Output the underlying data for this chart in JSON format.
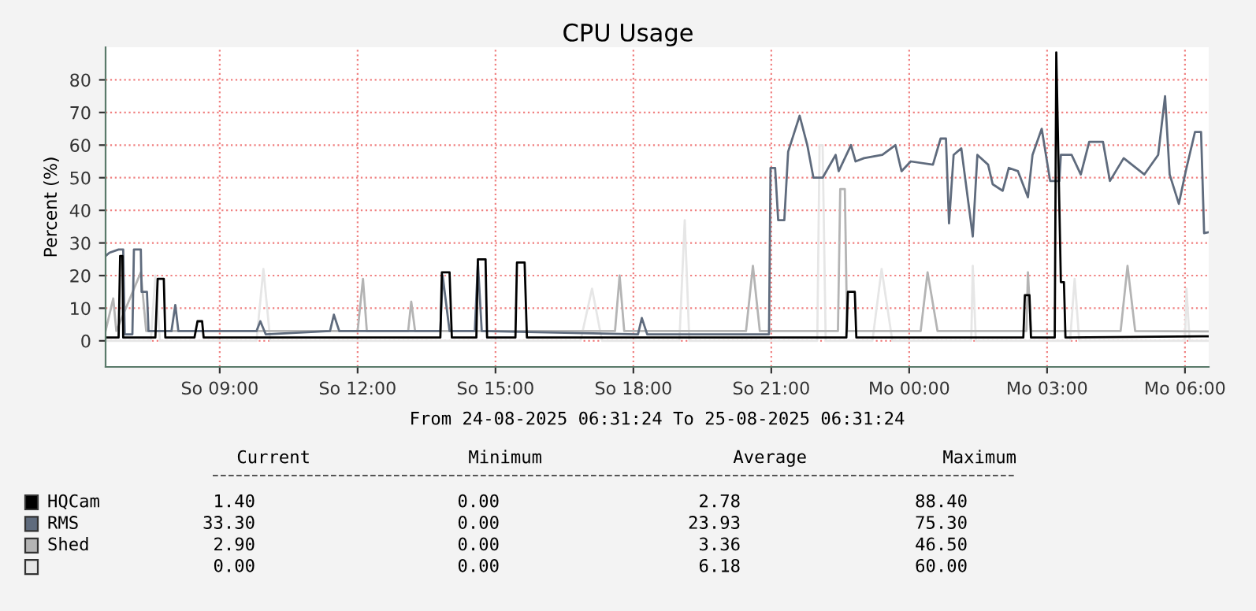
{
  "chart_data": {
    "type": "line",
    "title": "CPU Usage",
    "ylabel": "Percent (%)",
    "xlabel": "From 24-08-2025 06:31:24 To 25-08-2025 06:31:24",
    "xlim": [
      "2025-08-24T06:31",
      "2025-08-25T06:31"
    ],
    "xticks": [
      {
        "value": "2025-08-24T09:00",
        "label": "So 09:00"
      },
      {
        "value": "2025-08-24T12:00",
        "label": "So 12:00"
      },
      {
        "value": "2025-08-24T15:00",
        "label": "So 15:00"
      },
      {
        "value": "2025-08-24T18:00",
        "label": "So 18:00"
      },
      {
        "value": "2025-08-24T21:00",
        "label": "So 21:00"
      },
      {
        "value": "2025-08-25T00:00",
        "label": "Mo 00:00"
      },
      {
        "value": "2025-08-25T03:00",
        "label": "Mo 03:00"
      },
      {
        "value": "2025-08-25T06:00",
        "label": "Mo 06:00"
      }
    ],
    "ylim": [
      -8,
      90
    ],
    "yticks": [
      0,
      10,
      20,
      30,
      40,
      50,
      60,
      70,
      80
    ],
    "grid": true,
    "legend": "bottom",
    "series": [
      {
        "name": "HQCam",
        "color": "#000000",
        "x": [
          "2025-08-24T06:31",
          "2025-08-24T06:48",
          "2025-08-24T06:50",
          "2025-08-24T06:53",
          "2025-08-24T06:54",
          "2025-08-24T07:36",
          "2025-08-24T07:39",
          "2025-08-24T07:47",
          "2025-08-24T07:49",
          "2025-08-24T08:27",
          "2025-08-24T08:31",
          "2025-08-24T08:37",
          "2025-08-24T08:39",
          "2025-08-24T13:48",
          "2025-08-24T13:50",
          "2025-08-24T14:00",
          "2025-08-24T14:03",
          "2025-08-24T14:35",
          "2025-08-24T14:37",
          "2025-08-24T14:47",
          "2025-08-24T14:49",
          "2025-08-24T15:26",
          "2025-08-24T15:28",
          "2025-08-24T15:38",
          "2025-08-24T15:41",
          "2025-08-24T22:38",
          "2025-08-24T22:40",
          "2025-08-24T22:49",
          "2025-08-24T22:51",
          "2025-08-25T02:29",
          "2025-08-25T02:31",
          "2025-08-25T02:37",
          "2025-08-25T02:39",
          "2025-08-25T03:10",
          "2025-08-25T03:12",
          "2025-08-25T03:18",
          "2025-08-25T03:22",
          "2025-08-25T03:24",
          "2025-08-25T06:31"
        ],
        "values": [
          1,
          1,
          26,
          26,
          1,
          1,
          19,
          19,
          1,
          1,
          6,
          6,
          1,
          1,
          21,
          21,
          1,
          1,
          25,
          25,
          1,
          1,
          24,
          24,
          1,
          1,
          15,
          15,
          1,
          1,
          14,
          14,
          1,
          1,
          88.4,
          18,
          18,
          1,
          1.4
        ]
      },
      {
        "name": "RMS",
        "color": "#5f6b7d",
        "x": [
          "2025-08-24T06:31",
          "2025-08-24T06:36",
          "2025-08-24T06:48",
          "2025-08-24T06:54",
          "2025-08-24T06:56",
          "2025-08-24T07:06",
          "2025-08-24T07:08",
          "2025-08-24T07:17",
          "2025-08-24T07:18",
          "2025-08-24T07:25",
          "2025-08-24T07:27",
          "2025-08-24T07:57",
          "2025-08-24T08:02",
          "2025-08-24T08:06",
          "2025-08-24T09:48",
          "2025-08-24T09:53",
          "2025-08-24T10:00",
          "2025-08-24T11:24",
          "2025-08-24T11:29",
          "2025-08-24T11:36",
          "2025-08-24T13:48",
          "2025-08-24T13:51",
          "2025-08-24T14:00",
          "2025-08-24T14:33",
          "2025-08-24T14:37",
          "2025-08-24T14:42",
          "2025-08-24T18:06",
          "2025-08-24T18:11",
          "2025-08-24T18:18",
          "2025-08-24T20:57",
          "2025-08-24T20:59",
          "2025-08-24T21:05",
          "2025-08-24T21:09",
          "2025-08-24T21:17",
          "2025-08-24T21:22",
          "2025-08-24T21:37",
          "2025-08-24T21:47",
          "2025-08-24T21:55",
          "2025-08-24T22:07",
          "2025-08-24T22:24",
          "2025-08-24T22:28",
          "2025-08-24T22:44",
          "2025-08-24T22:50",
          "2025-08-24T23:01",
          "2025-08-24T23:25",
          "2025-08-24T23:42",
          "2025-08-24T23:50",
          "2025-08-25T00:02",
          "2025-08-25T00:31",
          "2025-08-25T00:41",
          "2025-08-25T00:48",
          "2025-08-25T00:52",
          "2025-08-25T00:58",
          "2025-08-25T01:08",
          "2025-08-25T01:23",
          "2025-08-25T01:29",
          "2025-08-25T01:43",
          "2025-08-25T01:49",
          "2025-08-25T02:02",
          "2025-08-25T02:10",
          "2025-08-25T02:22",
          "2025-08-25T02:35",
          "2025-08-25T02:41",
          "2025-08-25T02:53",
          "2025-08-25T03:04",
          "2025-08-25T03:16",
          "2025-08-25T03:18",
          "2025-08-25T03:32",
          "2025-08-25T03:44",
          "2025-08-25T03:55",
          "2025-08-25T04:13",
          "2025-08-25T04:22",
          "2025-08-25T04:40",
          "2025-08-25T05:07",
          "2025-08-25T05:25",
          "2025-08-25T05:34",
          "2025-08-25T05:40",
          "2025-08-25T05:52",
          "2025-08-25T06:01",
          "2025-08-25T06:13",
          "2025-08-25T06:21",
          "2025-08-25T06:25",
          "2025-08-25T06:31"
        ],
        "values": [
          26,
          27,
          28,
          28,
          2,
          2,
          28,
          28,
          15,
          15,
          3,
          3,
          11,
          3,
          3,
          6,
          2,
          3,
          8,
          3,
          3,
          20,
          3,
          3,
          24,
          3,
          2,
          7,
          2,
          2,
          53,
          53,
          37,
          37,
          58,
          69,
          60,
          50,
          50,
          57,
          52,
          60,
          55,
          56,
          57,
          60,
          52,
          55,
          54,
          62,
          62,
          36,
          57,
          59,
          32,
          57,
          54,
          48,
          46,
          53,
          52,
          44,
          57,
          65,
          49,
          49,
          57,
          57,
          51,
          61,
          61,
          49,
          56,
          51,
          57,
          75,
          51,
          42,
          52,
          64,
          64,
          33,
          33.3
        ]
      },
      {
        "name": "Shed",
        "color": "#b4b4b4",
        "x": [
          "2025-08-24T06:31",
          "2025-08-24T06:41",
          "2025-08-24T06:45",
          "2025-08-24T07:17",
          "2025-08-24T07:24",
          "2025-08-24T12:00",
          "2025-08-24T12:07",
          "2025-08-24T12:12",
          "2025-08-24T13:06",
          "2025-08-24T13:10",
          "2025-08-24T13:15",
          "2025-08-24T17:36",
          "2025-08-24T17:42",
          "2025-08-24T17:48",
          "2025-08-24T20:27",
          "2025-08-24T20:36",
          "2025-08-24T20:45",
          "2025-08-24T22:27",
          "2025-08-24T22:30",
          "2025-08-24T22:36",
          "2025-08-24T22:39",
          "2025-08-25T00:15",
          "2025-08-25T00:24",
          "2025-08-25T00:37",
          "2025-08-25T02:33",
          "2025-08-25T02:35",
          "2025-08-25T02:39",
          "2025-08-25T04:36",
          "2025-08-25T04:45",
          "2025-08-25T04:55",
          "2025-08-25T06:31"
        ],
        "values": [
          3,
          13,
          3,
          21,
          3,
          3,
          19,
          3,
          3,
          12,
          3,
          3,
          20,
          3,
          3,
          23,
          3,
          3,
          46.5,
          46.5,
          3,
          3,
          21,
          3,
          3,
          21,
          3,
          3,
          23,
          3,
          2.9
        ]
      },
      {
        "color": "#e6e6e6",
        "x": [
          "2025-08-24T06:31",
          "2025-08-24T07:30",
          "2025-08-24T07:36",
          "2025-08-24T07:42",
          "2025-08-24T09:48",
          "2025-08-24T09:57",
          "2025-08-24T10:06",
          "2025-08-24T16:51",
          "2025-08-24T17:06",
          "2025-08-24T17:19",
          "2025-08-24T19:00",
          "2025-08-24T19:07",
          "2025-08-24T19:13",
          "2025-08-24T22:00",
          "2025-08-24T22:03",
          "2025-08-24T22:07",
          "2025-08-24T22:11",
          "2025-08-24T23:12",
          "2025-08-24T23:24",
          "2025-08-24T23:38",
          "2025-08-25T01:21",
          "2025-08-25T01:23",
          "2025-08-25T01:27",
          "2025-08-25T03:30",
          "2025-08-25T03:36",
          "2025-08-25T03:42",
          "2025-08-25T06:00",
          "2025-08-25T06:02",
          "2025-08-25T06:06",
          "2025-08-25T06:31"
        ],
        "values": [
          0,
          0,
          20,
          0,
          0,
          22,
          0,
          0,
          16,
          0,
          0,
          37,
          0,
          0,
          60,
          60,
          0,
          0,
          22,
          0,
          0,
          23,
          0,
          0,
          19,
          0,
          0,
          16,
          0,
          0
        ]
      }
    ],
    "annotations": [
      "Current",
      "Minimum",
      "Average",
      "Maximum",
      "1.40",
      "0.00",
      "2.78",
      "88.40",
      "33.30",
      "0.00",
      "23.93",
      "75.30",
      "2.90",
      "0.00",
      "3.36",
      "46.50",
      "0.00",
      "0.00",
      "6.18",
      "60.00"
    ]
  }
}
